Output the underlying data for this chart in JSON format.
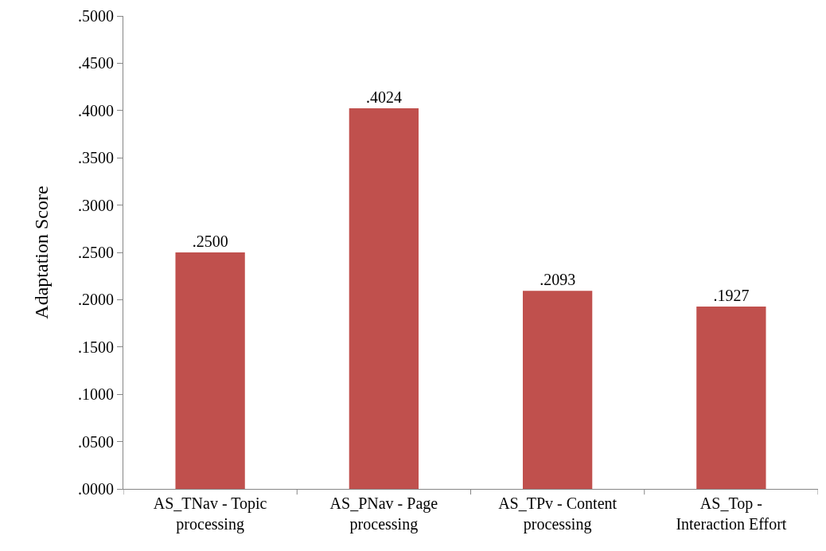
{
  "chart_data": {
    "type": "bar",
    "ylabel": "Adaptation Score",
    "categories": [
      "AS_TNav - Topic processing",
      "AS_PNav - Page processing",
      "AS_TPv - Content processing",
      "AS_Top - Interaction Effort"
    ],
    "values": [
      0.25,
      0.4024,
      0.2093,
      0.1927
    ],
    "value_labels": [
      ".2500",
      ".4024",
      ".2093",
      ".1927"
    ],
    "color": "#c0504d",
    "ylim": [
      0,
      0.5
    ],
    "yticks": [
      {
        "value": 0,
        "label": ".0000"
      },
      {
        "value": 0.05,
        "label": ".0500"
      },
      {
        "value": 0.1,
        "label": ".1000"
      },
      {
        "value": 0.15,
        "label": ".1500"
      },
      {
        "value": 0.2,
        "label": ".2000"
      },
      {
        "value": 0.25,
        "label": ".2500"
      },
      {
        "value": 0.3,
        "label": ".3000"
      },
      {
        "value": 0.35,
        "label": ".3500"
      },
      {
        "value": 0.4,
        "label": ".4000"
      },
      {
        "value": 0.45,
        "label": ".4500"
      },
      {
        "value": 0.5,
        "label": ".5000"
      }
    ],
    "grid": false,
    "legend": false
  }
}
